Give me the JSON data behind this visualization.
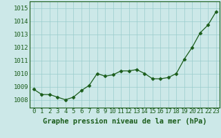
{
  "x": [
    0,
    1,
    2,
    3,
    4,
    5,
    6,
    7,
    8,
    9,
    10,
    11,
    12,
    13,
    14,
    15,
    16,
    17,
    18,
    19,
    20,
    21,
    22,
    23
  ],
  "y": [
    1008.8,
    1008.4,
    1008.4,
    1008.2,
    1008.0,
    1008.2,
    1008.7,
    1009.1,
    1010.0,
    1009.8,
    1009.9,
    1010.2,
    1010.2,
    1010.3,
    1010.0,
    1009.6,
    1009.6,
    1009.7,
    1010.0,
    1011.1,
    1012.0,
    1013.1,
    1013.7,
    1014.7
  ],
  "line_color": "#1a5c1a",
  "marker": "D",
  "marker_size": 2.5,
  "bg_color": "#cce8e8",
  "grid_color": "#99cccc",
  "xlabel": "Graphe pression niveau de la mer (hPa)",
  "xlabel_fontsize": 7.5,
  "xlabel_color": "#1a5c1a",
  "xlabel_bold": true,
  "yticks": [
    1008,
    1009,
    1010,
    1011,
    1012,
    1013,
    1014,
    1015
  ],
  "ylim": [
    1007.4,
    1015.5
  ],
  "xlim": [
    -0.5,
    23.5
  ],
  "tick_fontsize": 6.5,
  "tick_color": "#1a5c1a",
  "spine_color": "#1a5c1a"
}
